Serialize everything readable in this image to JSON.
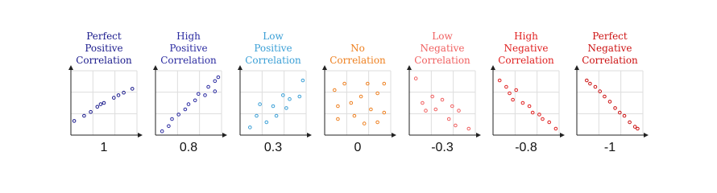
{
  "chart_data": [
    {
      "type": "scatter",
      "title": [
        "Perfect",
        "Positive",
        "Correlation"
      ],
      "xlabel": "1",
      "color": "#1a1a8c",
      "xlim": [
        0,
        10
      ],
      "ylim": [
        0,
        10
      ],
      "grid": true,
      "x": [
        0.5,
        2,
        3,
        4,
        4.5,
        5,
        6.5,
        7.2,
        8,
        9.3
      ],
      "y": [
        2.2,
        3,
        3.6,
        4.4,
        4.8,
        5,
        5.8,
        6.2,
        6.6,
        7.2
      ]
    },
    {
      "type": "scatter",
      "title": [
        "High",
        "Positive",
        "Correlation"
      ],
      "xlabel": "0.8",
      "color": "#2a2aa0",
      "xlim": [
        0,
        10
      ],
      "ylim": [
        0,
        10
      ],
      "grid": true,
      "x": [
        1,
        2,
        2.5,
        3.5,
        4.5,
        5,
        6,
        6.5,
        7.5,
        8,
        9,
        9,
        9.5
      ],
      "y": [
        0.6,
        1.4,
        2.5,
        3.2,
        4,
        4.8,
        5.4,
        6.4,
        6.2,
        7.5,
        6.8,
        8.4,
        9
      ]
    },
    {
      "type": "scatter",
      "title": [
        "Low",
        "Positive",
        "Correlation"
      ],
      "xlabel": "0.3",
      "color": "#3a9fd6",
      "xlim": [
        0,
        10
      ],
      "ylim": [
        0,
        10
      ],
      "grid": true,
      "x": [
        1.5,
        2.5,
        3,
        4,
        5,
        5.5,
        6.5,
        7,
        7.5,
        9,
        9.5
      ],
      "y": [
        1.2,
        3,
        4.8,
        2,
        4.5,
        3,
        6.2,
        4.2,
        5.6,
        6,
        8.5
      ]
    },
    {
      "type": "scatter",
      "title": [
        "No",
        "Correlation"
      ],
      "xlabel": "0",
      "color": "#ee8020",
      "xlim": [
        0,
        10
      ],
      "ylim": [
        0,
        10
      ],
      "grid": true,
      "x": [
        1.5,
        2,
        2,
        3,
        4,
        4.5,
        5.5,
        6,
        6.5,
        7,
        8,
        8,
        9,
        9
      ],
      "y": [
        7,
        4.5,
        2.5,
        8,
        5,
        3,
        6,
        1.8,
        8,
        4,
        6.5,
        2,
        8,
        3.5
      ]
    },
    {
      "type": "scatter",
      "title": [
        "Low",
        "Negative",
        "Correlation"
      ],
      "xlabel": "-0.3",
      "color": "#f06060",
      "xlim": [
        0,
        10
      ],
      "ylim": [
        0,
        10
      ],
      "grid": true,
      "x": [
        1,
        2,
        2.5,
        3.5,
        4,
        5,
        6,
        6.5,
        7,
        7.5,
        9
      ],
      "y": [
        8.8,
        5,
        3.8,
        6,
        4,
        5.5,
        2.5,
        4.5,
        1.5,
        3.8,
        1
      ]
    },
    {
      "type": "scatter",
      "title": [
        "High",
        "Negative",
        "Correlation"
      ],
      "xlabel": "-0.8",
      "color": "#e02020",
      "xlim": [
        0,
        10
      ],
      "ylim": [
        0,
        10
      ],
      "grid": true,
      "x": [
        1,
        2,
        2.5,
        3,
        3.5,
        4.5,
        5.5,
        6,
        7,
        7.5,
        8.5,
        9.5
      ],
      "y": [
        8.5,
        7.5,
        6.5,
        5.5,
        7,
        5,
        4.5,
        3.5,
        3.2,
        2.5,
        2,
        1
      ]
    },
    {
      "type": "scatter",
      "title": [
        "Perfect",
        "Negative",
        "Correlation"
      ],
      "xlabel": "-1",
      "color": "#cc1111",
      "xlim": [
        0,
        10
      ],
      "ylim": [
        0,
        10
      ],
      "grid": true,
      "x": [
        1.5,
        2,
        2.8,
        3.5,
        4.2,
        5,
        5.8,
        6.5,
        7.2,
        8,
        8.8,
        9.2
      ],
      "y": [
        8.5,
        8,
        7.5,
        6.8,
        6,
        5.2,
        4.2,
        3.5,
        3,
        2,
        1.3,
        1
      ]
    }
  ]
}
